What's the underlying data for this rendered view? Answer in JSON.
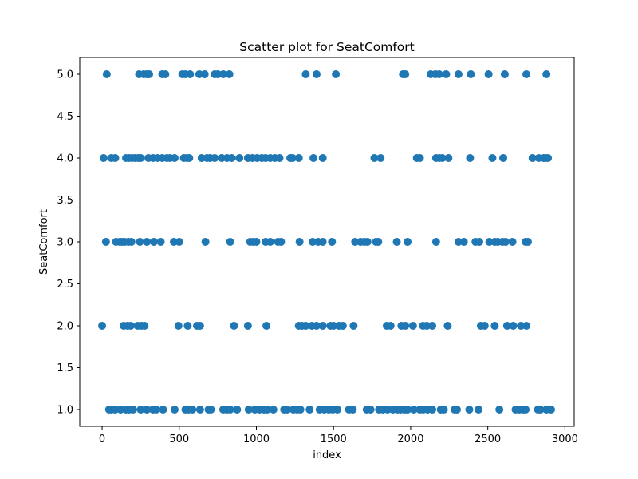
{
  "chart_data": {
    "type": "scatter",
    "title": "Scatter plot for SeatComfort",
    "xlabel": "index",
    "ylabel": "SeatComfort",
    "xlim": [
      -145,
      3060
    ],
    "ylim": [
      0.8,
      5.2
    ],
    "xticks": [
      0,
      500,
      1000,
      1500,
      2000,
      2500,
      3000
    ],
    "yticks": [
      1.0,
      1.5,
      2.0,
      2.5,
      3.0,
      3.5,
      4.0,
      4.5,
      5.0
    ],
    "xtick_labels": [
      "0",
      "500",
      "1000",
      "1500",
      "2000",
      "2500",
      "3000"
    ],
    "ytick_labels": [
      "1.0",
      "1.5",
      "2.0",
      "2.5",
      "3.0",
      "3.5",
      "4.0",
      "4.5",
      "5.0"
    ],
    "grid": false,
    "marker_color": "#1f77b4",
    "series": [
      {
        "points": [
          [
            30,
            5
          ],
          [
            240,
            5
          ],
          [
            270,
            5
          ],
          [
            290,
            5
          ],
          [
            305,
            5
          ],
          [
            390,
            5
          ],
          [
            410,
            5
          ],
          [
            520,
            5
          ],
          [
            540,
            5
          ],
          [
            570,
            5
          ],
          [
            630,
            5
          ],
          [
            665,
            5
          ],
          [
            730,
            5
          ],
          [
            750,
            5
          ],
          [
            785,
            5
          ],
          [
            825,
            5
          ],
          [
            1320,
            5
          ],
          [
            1390,
            5
          ],
          [
            1515,
            5
          ],
          [
            1950,
            5
          ],
          [
            1965,
            5
          ],
          [
            2130,
            5
          ],
          [
            2160,
            5
          ],
          [
            2185,
            5
          ],
          [
            2230,
            5
          ],
          [
            2310,
            5
          ],
          [
            2390,
            5
          ],
          [
            2505,
            5
          ],
          [
            2610,
            5
          ],
          [
            2750,
            5
          ],
          [
            2880,
            5
          ],
          [
            10,
            4
          ],
          [
            60,
            4
          ],
          [
            85,
            4
          ],
          [
            155,
            4
          ],
          [
            175,
            4
          ],
          [
            195,
            4
          ],
          [
            215,
            4
          ],
          [
            235,
            4
          ],
          [
            250,
            4
          ],
          [
            300,
            4
          ],
          [
            330,
            4
          ],
          [
            360,
            4
          ],
          [
            390,
            4
          ],
          [
            420,
            4
          ],
          [
            440,
            4
          ],
          [
            470,
            4
          ],
          [
            530,
            4
          ],
          [
            550,
            4
          ],
          [
            565,
            4
          ],
          [
            645,
            4
          ],
          [
            680,
            4
          ],
          [
            700,
            4
          ],
          [
            730,
            4
          ],
          [
            775,
            4
          ],
          [
            810,
            4
          ],
          [
            840,
            4
          ],
          [
            890,
            4
          ],
          [
            945,
            4
          ],
          [
            975,
            4
          ],
          [
            1005,
            4
          ],
          [
            1035,
            4
          ],
          [
            1060,
            4
          ],
          [
            1090,
            4
          ],
          [
            1120,
            4
          ],
          [
            1150,
            4
          ],
          [
            1220,
            4
          ],
          [
            1235,
            4
          ],
          [
            1275,
            4
          ],
          [
            1370,
            4
          ],
          [
            1430,
            4
          ],
          [
            1765,
            4
          ],
          [
            1805,
            4
          ],
          [
            2040,
            4
          ],
          [
            2060,
            4
          ],
          [
            2165,
            4
          ],
          [
            2185,
            4
          ],
          [
            2205,
            4
          ],
          [
            2245,
            4
          ],
          [
            2385,
            4
          ],
          [
            2530,
            4
          ],
          [
            2600,
            4
          ],
          [
            2790,
            4
          ],
          [
            2830,
            4
          ],
          [
            2860,
            4
          ],
          [
            2875,
            4
          ],
          [
            2890,
            4
          ],
          [
            25,
            3
          ],
          [
            90,
            3
          ],
          [
            115,
            3
          ],
          [
            130,
            3
          ],
          [
            145,
            3
          ],
          [
            170,
            3
          ],
          [
            190,
            3
          ],
          [
            245,
            3
          ],
          [
            290,
            3
          ],
          [
            335,
            3
          ],
          [
            380,
            3
          ],
          [
            465,
            3
          ],
          [
            500,
            3
          ],
          [
            670,
            3
          ],
          [
            830,
            3
          ],
          [
            960,
            3
          ],
          [
            980,
            3
          ],
          [
            1000,
            3
          ],
          [
            1060,
            3
          ],
          [
            1090,
            3
          ],
          [
            1140,
            3
          ],
          [
            1160,
            3
          ],
          [
            1280,
            3
          ],
          [
            1365,
            3
          ],
          [
            1400,
            3
          ],
          [
            1430,
            3
          ],
          [
            1490,
            3
          ],
          [
            1640,
            3
          ],
          [
            1675,
            3
          ],
          [
            1700,
            3
          ],
          [
            1720,
            3
          ],
          [
            1775,
            3
          ],
          [
            1790,
            3
          ],
          [
            1910,
            3
          ],
          [
            1980,
            3
          ],
          [
            2165,
            3
          ],
          [
            2310,
            3
          ],
          [
            2345,
            3
          ],
          [
            2420,
            3
          ],
          [
            2445,
            3
          ],
          [
            2510,
            3
          ],
          [
            2545,
            3
          ],
          [
            2565,
            3
          ],
          [
            2595,
            3
          ],
          [
            2615,
            3
          ],
          [
            2660,
            3
          ],
          [
            2745,
            3
          ],
          [
            2760,
            3
          ],
          [
            0,
            2
          ],
          [
            140,
            2
          ],
          [
            165,
            2
          ],
          [
            185,
            2
          ],
          [
            230,
            2
          ],
          [
            255,
            2
          ],
          [
            275,
            2
          ],
          [
            495,
            2
          ],
          [
            555,
            2
          ],
          [
            615,
            2
          ],
          [
            635,
            2
          ],
          [
            855,
            2
          ],
          [
            945,
            2
          ],
          [
            1065,
            2
          ],
          [
            1275,
            2
          ],
          [
            1295,
            2
          ],
          [
            1320,
            2
          ],
          [
            1360,
            2
          ],
          [
            1390,
            2
          ],
          [
            1430,
            2
          ],
          [
            1480,
            2
          ],
          [
            1500,
            2
          ],
          [
            1535,
            2
          ],
          [
            1560,
            2
          ],
          [
            1630,
            2
          ],
          [
            1845,
            2
          ],
          [
            1870,
            2
          ],
          [
            1940,
            2
          ],
          [
            1965,
            2
          ],
          [
            2015,
            2
          ],
          [
            2080,
            2
          ],
          [
            2105,
            2
          ],
          [
            2140,
            2
          ],
          [
            2240,
            2
          ],
          [
            2455,
            2
          ],
          [
            2480,
            2
          ],
          [
            2545,
            2
          ],
          [
            2625,
            2
          ],
          [
            2665,
            2
          ],
          [
            2715,
            2
          ],
          [
            2750,
            2
          ],
          [
            45,
            1
          ],
          [
            60,
            1
          ],
          [
            85,
            1
          ],
          [
            120,
            1
          ],
          [
            155,
            1
          ],
          [
            175,
            1
          ],
          [
            200,
            1
          ],
          [
            250,
            1
          ],
          [
            290,
            1
          ],
          [
            330,
            1
          ],
          [
            350,
            1
          ],
          [
            395,
            1
          ],
          [
            470,
            1
          ],
          [
            540,
            1
          ],
          [
            560,
            1
          ],
          [
            585,
            1
          ],
          [
            635,
            1
          ],
          [
            690,
            1
          ],
          [
            705,
            1
          ],
          [
            785,
            1
          ],
          [
            810,
            1
          ],
          [
            830,
            1
          ],
          [
            875,
            1
          ],
          [
            950,
            1
          ],
          [
            990,
            1
          ],
          [
            1020,
            1
          ],
          [
            1050,
            1
          ],
          [
            1070,
            1
          ],
          [
            1110,
            1
          ],
          [
            1180,
            1
          ],
          [
            1200,
            1
          ],
          [
            1240,
            1
          ],
          [
            1265,
            1
          ],
          [
            1285,
            1
          ],
          [
            1345,
            1
          ],
          [
            1410,
            1
          ],
          [
            1440,
            1
          ],
          [
            1470,
            1
          ],
          [
            1495,
            1
          ],
          [
            1525,
            1
          ],
          [
            1600,
            1
          ],
          [
            1625,
            1
          ],
          [
            1715,
            1
          ],
          [
            1740,
            1
          ],
          [
            1795,
            1
          ],
          [
            1820,
            1
          ],
          [
            1850,
            1
          ],
          [
            1885,
            1
          ],
          [
            1915,
            1
          ],
          [
            1935,
            1
          ],
          [
            1960,
            1
          ],
          [
            1980,
            1
          ],
          [
            2020,
            1
          ],
          [
            2060,
            1
          ],
          [
            2080,
            1
          ],
          [
            2110,
            1
          ],
          [
            2140,
            1
          ],
          [
            2195,
            1
          ],
          [
            2215,
            1
          ],
          [
            2285,
            1
          ],
          [
            2300,
            1
          ],
          [
            2380,
            1
          ],
          [
            2440,
            1
          ],
          [
            2575,
            1
          ],
          [
            2680,
            1
          ],
          [
            2705,
            1
          ],
          [
            2730,
            1
          ],
          [
            2745,
            1
          ],
          [
            2825,
            1
          ],
          [
            2840,
            1
          ],
          [
            2880,
            1
          ],
          [
            2910,
            1
          ]
        ]
      }
    ]
  }
}
